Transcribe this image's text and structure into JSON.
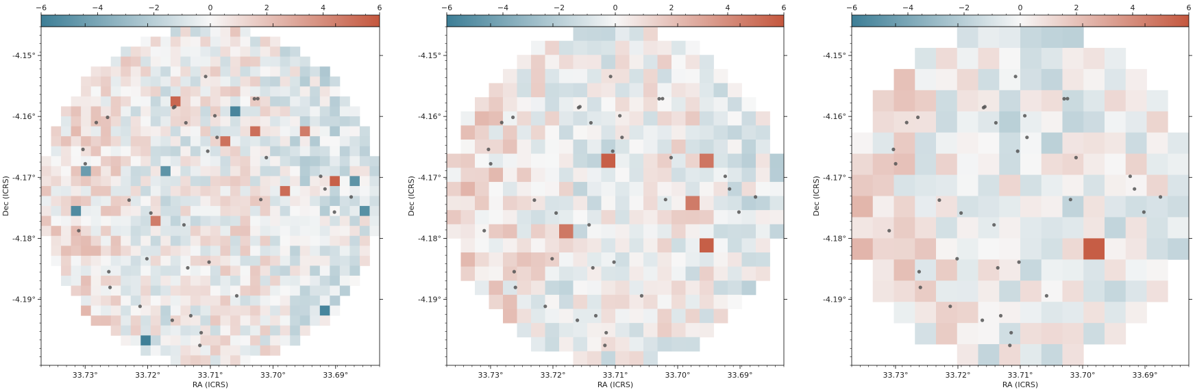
{
  "chart_data": [
    {
      "type": "heatmap",
      "title": "",
      "xlabel": "RA (ICRS)",
      "ylabel": "Dec (ICRS)",
      "x_ticks": [
        "33.73°",
        "33.72°",
        "33.71°",
        "33.70°",
        "33.69°"
      ],
      "y_ticks": [
        "-4.15°",
        "-4.16°",
        "-4.17°",
        "-4.18°",
        "-4.19°"
      ],
      "colorbar": {
        "ticks": [
          "−6",
          "−4",
          "−2",
          "0",
          "2",
          "4",
          "6"
        ],
        "range": [
          -6,
          6
        ],
        "cmap": [
          "#3d7e96",
          "#f7f7f7",
          "#c4573e"
        ]
      },
      "grid_size": 34,
      "value_range": [
        -6,
        6
      ],
      "sources": 34
    },
    {
      "type": "heatmap",
      "title": "",
      "xlabel": "RA (ICRS)",
      "ylabel": "Dec (ICRS)",
      "x_ticks": [
        "33.73°",
        "33.72°",
        "33.71°",
        "33.70°",
        "33.69°"
      ],
      "y_ticks": [
        "-4.15°",
        "-4.16°",
        "-4.17°",
        "-4.18°",
        "-4.19°"
      ],
      "colorbar": {
        "ticks": [
          "−6",
          "−4",
          "−2",
          "0",
          "2",
          "4",
          "6"
        ],
        "range": [
          -6,
          6
        ],
        "cmap": [
          "#3d7e96",
          "#f7f7f7",
          "#c4573e"
        ]
      },
      "grid_size": 24,
      "value_range": [
        -6,
        6
      ],
      "sources": 34
    },
    {
      "type": "heatmap",
      "title": "",
      "xlabel": "RA (ICRS)",
      "ylabel": "Dec (ICRS)",
      "x_ticks": [
        "33.73°",
        "33.72°",
        "33.71°",
        "33.70°",
        "33.69°"
      ],
      "y_ticks": [
        "-4.15°",
        "-4.16°",
        "-4.17°",
        "-4.18°",
        "-4.19°"
      ],
      "colorbar": {
        "ticks": [
          "−6",
          "−4",
          "−2",
          "0",
          "2",
          "4",
          "6"
        ],
        "range": [
          -6,
          6
        ],
        "cmap": [
          "#3d7e96",
          "#f7f7f7",
          "#c4573e"
        ]
      },
      "grid_size": 16,
      "value_range": [
        -6,
        6
      ],
      "sources": 34
    }
  ]
}
